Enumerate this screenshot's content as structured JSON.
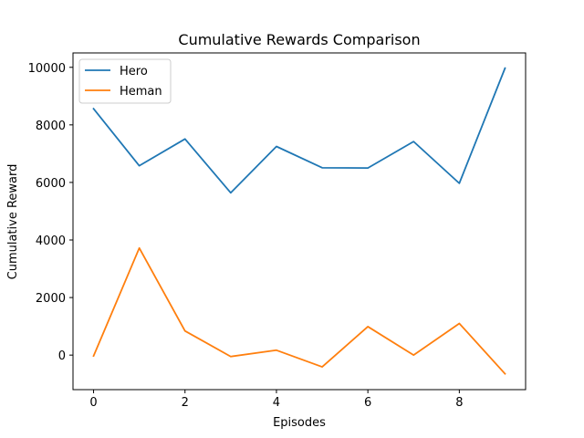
{
  "chart_data": {
    "type": "line",
    "title": "Cumulative Rewards Comparison",
    "xlabel": "Episodes",
    "ylabel": "Cumulative Reward",
    "x": [
      0,
      1,
      2,
      3,
      4,
      5,
      6,
      7,
      8,
      9
    ],
    "xlim": [
      -0.45,
      9.45
    ],
    "ylim": [
      -1200,
      10500
    ],
    "xticks": [
      0,
      2,
      4,
      6,
      8
    ],
    "yticks": [
      0,
      2000,
      4000,
      6000,
      8000,
      10000
    ],
    "grid": false,
    "legend_position": "top-left",
    "series": [
      {
        "name": "Hero",
        "color": "#1f77b4",
        "values": [
          8560,
          6580,
          7510,
          5640,
          7250,
          6510,
          6500,
          7420,
          5970,
          9970
        ]
      },
      {
        "name": "Heman",
        "color": "#ff7f0e",
        "values": [
          -30,
          3720,
          840,
          -50,
          170,
          -410,
          990,
          0,
          1100,
          -650
        ]
      }
    ]
  }
}
